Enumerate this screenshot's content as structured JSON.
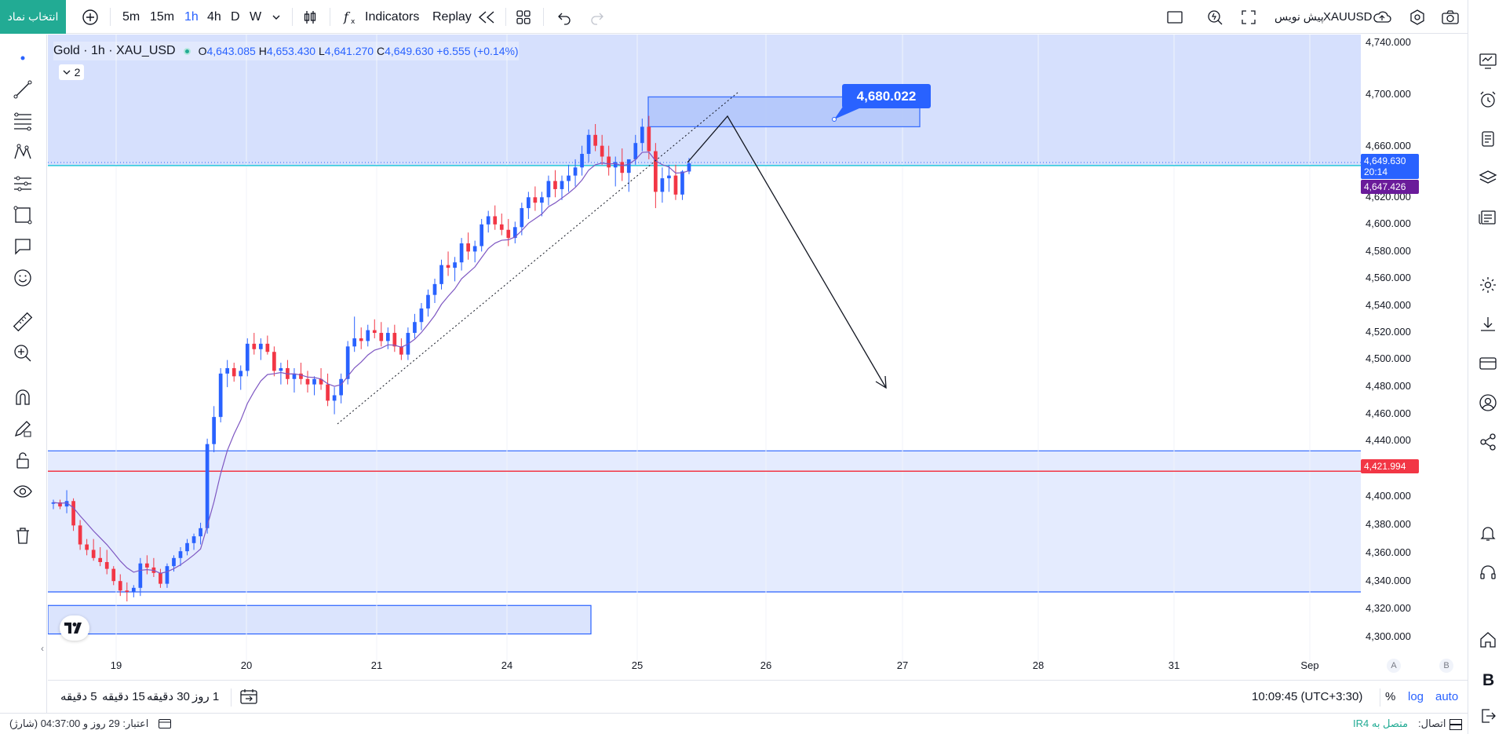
{
  "toolbar": {
    "symbol_button": "انتخاب نماد",
    "timeframes": [
      "5m",
      "15m",
      "1h",
      "4h",
      "D",
      "W"
    ],
    "active_timeframe": "1h",
    "indicators_label": "Indicators",
    "replay_label": "Replay",
    "symbol_name": "XAUUSD",
    "pre_trade_label": "پیش نویس"
  },
  "legend": {
    "title": "Gold · 1h · XAU_USD",
    "open_label": "O",
    "open": "4,643.085",
    "high_label": "H",
    "high": "4,653.430",
    "low_label": "L",
    "low": "4,641.270",
    "close_label": "C",
    "close": "4,649.630",
    "change": "+6.555 (+0.14%)",
    "indicator_count": "2"
  },
  "price_axis": {
    "ticks": [
      "4,740.000",
      "4,700.000",
      "4,660.000",
      "4,620.000",
      "4,600.000",
      "4,580.000",
      "4,560.000",
      "4,540.000",
      "4,520.000",
      "4,500.000",
      "4,480.000",
      "4,460.000",
      "4,440.000",
      "4,400.000",
      "4,380.000",
      "4,360.000",
      "4,340.000",
      "4,320.000",
      "4,300.000"
    ],
    "current_price": "4,649.630",
    "countdown": "20:14",
    "level_purple": "4,647.426",
    "level_red": "4,421.994"
  },
  "time_axis": {
    "ticks": [
      "19",
      "20",
      "21",
      "24",
      "25",
      "26",
      "27",
      "28",
      "31",
      "Sep"
    ],
    "corner_a": "A",
    "corner_b": "B"
  },
  "drawing": {
    "target_price": "4,680.022"
  },
  "bottom": {
    "ranges": [
      "5 دقیقه",
      "15 دقیقه",
      "30 دقیقه",
      "1 روز"
    ],
    "clock": "10:09:45 (UTC+3:30)",
    "percent": "%",
    "log": "log",
    "auto": "auto"
  },
  "status": {
    "credit": "اعتبار: 29 روز و 04:37:00 (شارژ)",
    "connection_label": "اتصال:",
    "connection_value": "متصل به IR4"
  },
  "colors": {
    "accent": "#2962ff",
    "bull": "#2962ff",
    "bear": "#f23645",
    "teal": "#22ab94",
    "zone": "#dbe4fd",
    "purple": "#7e57c2"
  },
  "chart_data": {
    "type": "candlestick",
    "symbol": "XAU_USD",
    "interval": "1h",
    "ylim": [
      4295,
      4745
    ],
    "key_levels": [
      {
        "name": "current",
        "value": 4649.63
      },
      {
        "name": "purple",
        "value": 4647.426
      },
      {
        "name": "red",
        "value": 4421.994
      },
      {
        "name": "target",
        "value": 4680.022
      }
    ],
    "zones": [
      {
        "from": 4647.426,
        "to": 4745
      },
      {
        "from": 4333,
        "to": 4437
      }
    ]
  }
}
